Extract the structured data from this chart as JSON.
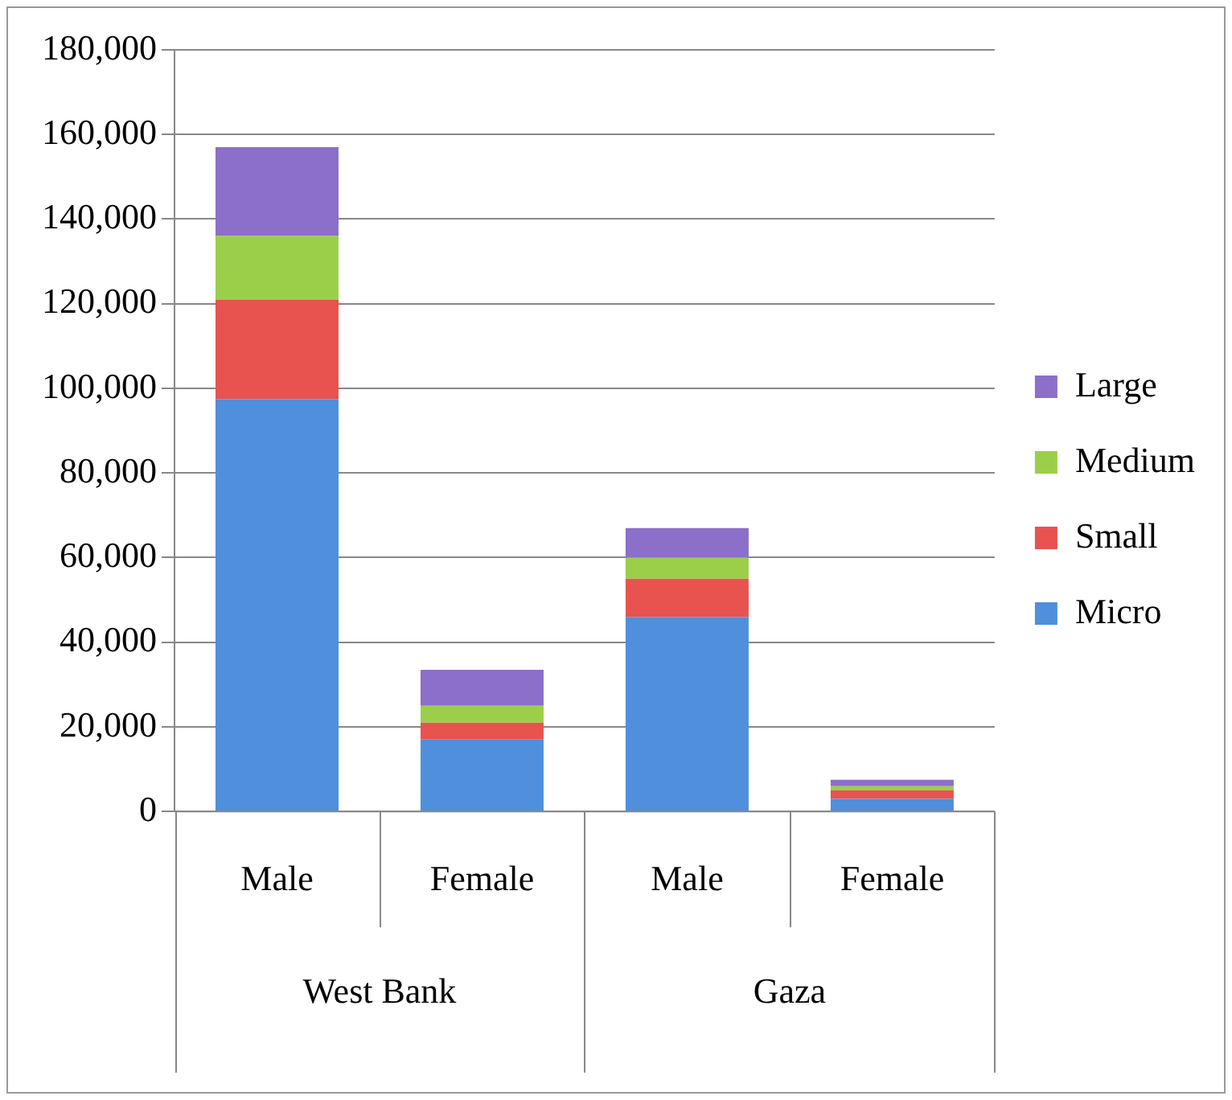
{
  "chart_data": {
    "type": "bar",
    "stacked": true,
    "categories": [
      "Male",
      "Female",
      "Male",
      "Female"
    ],
    "annotations": [
      "West Bank",
      "Gaza"
    ],
    "series": [
      {
        "name": "Micro",
        "color": "#4f8fdc",
        "values": [
          97500,
          17000,
          46000,
          3000
        ]
      },
      {
        "name": "Small",
        "color": "#e8524f",
        "values": [
          23500,
          4000,
          9000,
          2000
        ]
      },
      {
        "name": "Medium",
        "color": "#9bcf4a",
        "values": [
          15000,
          4000,
          5000,
          1000
        ]
      },
      {
        "name": "Large",
        "color": "#8b6fc9",
        "values": [
          21000,
          8500,
          7000,
          1500
        ]
      }
    ],
    "ylim": [
      0,
      180000
    ],
    "yticks": [
      {
        "value": 0,
        "label": "0"
      },
      {
        "value": 20000,
        "label": "20,000"
      },
      {
        "value": 40000,
        "label": "40,000"
      },
      {
        "value": 60000,
        "label": "60,000"
      },
      {
        "value": 80000,
        "label": "80,000"
      },
      {
        "value": 100000,
        "label": "100,000"
      },
      {
        "value": 120000,
        "label": "120,000"
      },
      {
        "value": 140000,
        "label": "140,000"
      },
      {
        "value": 160000,
        "label": "160,000"
      },
      {
        "value": 180000,
        "label": "180,000"
      }
    ],
    "grid": "y",
    "legend": "right"
  }
}
